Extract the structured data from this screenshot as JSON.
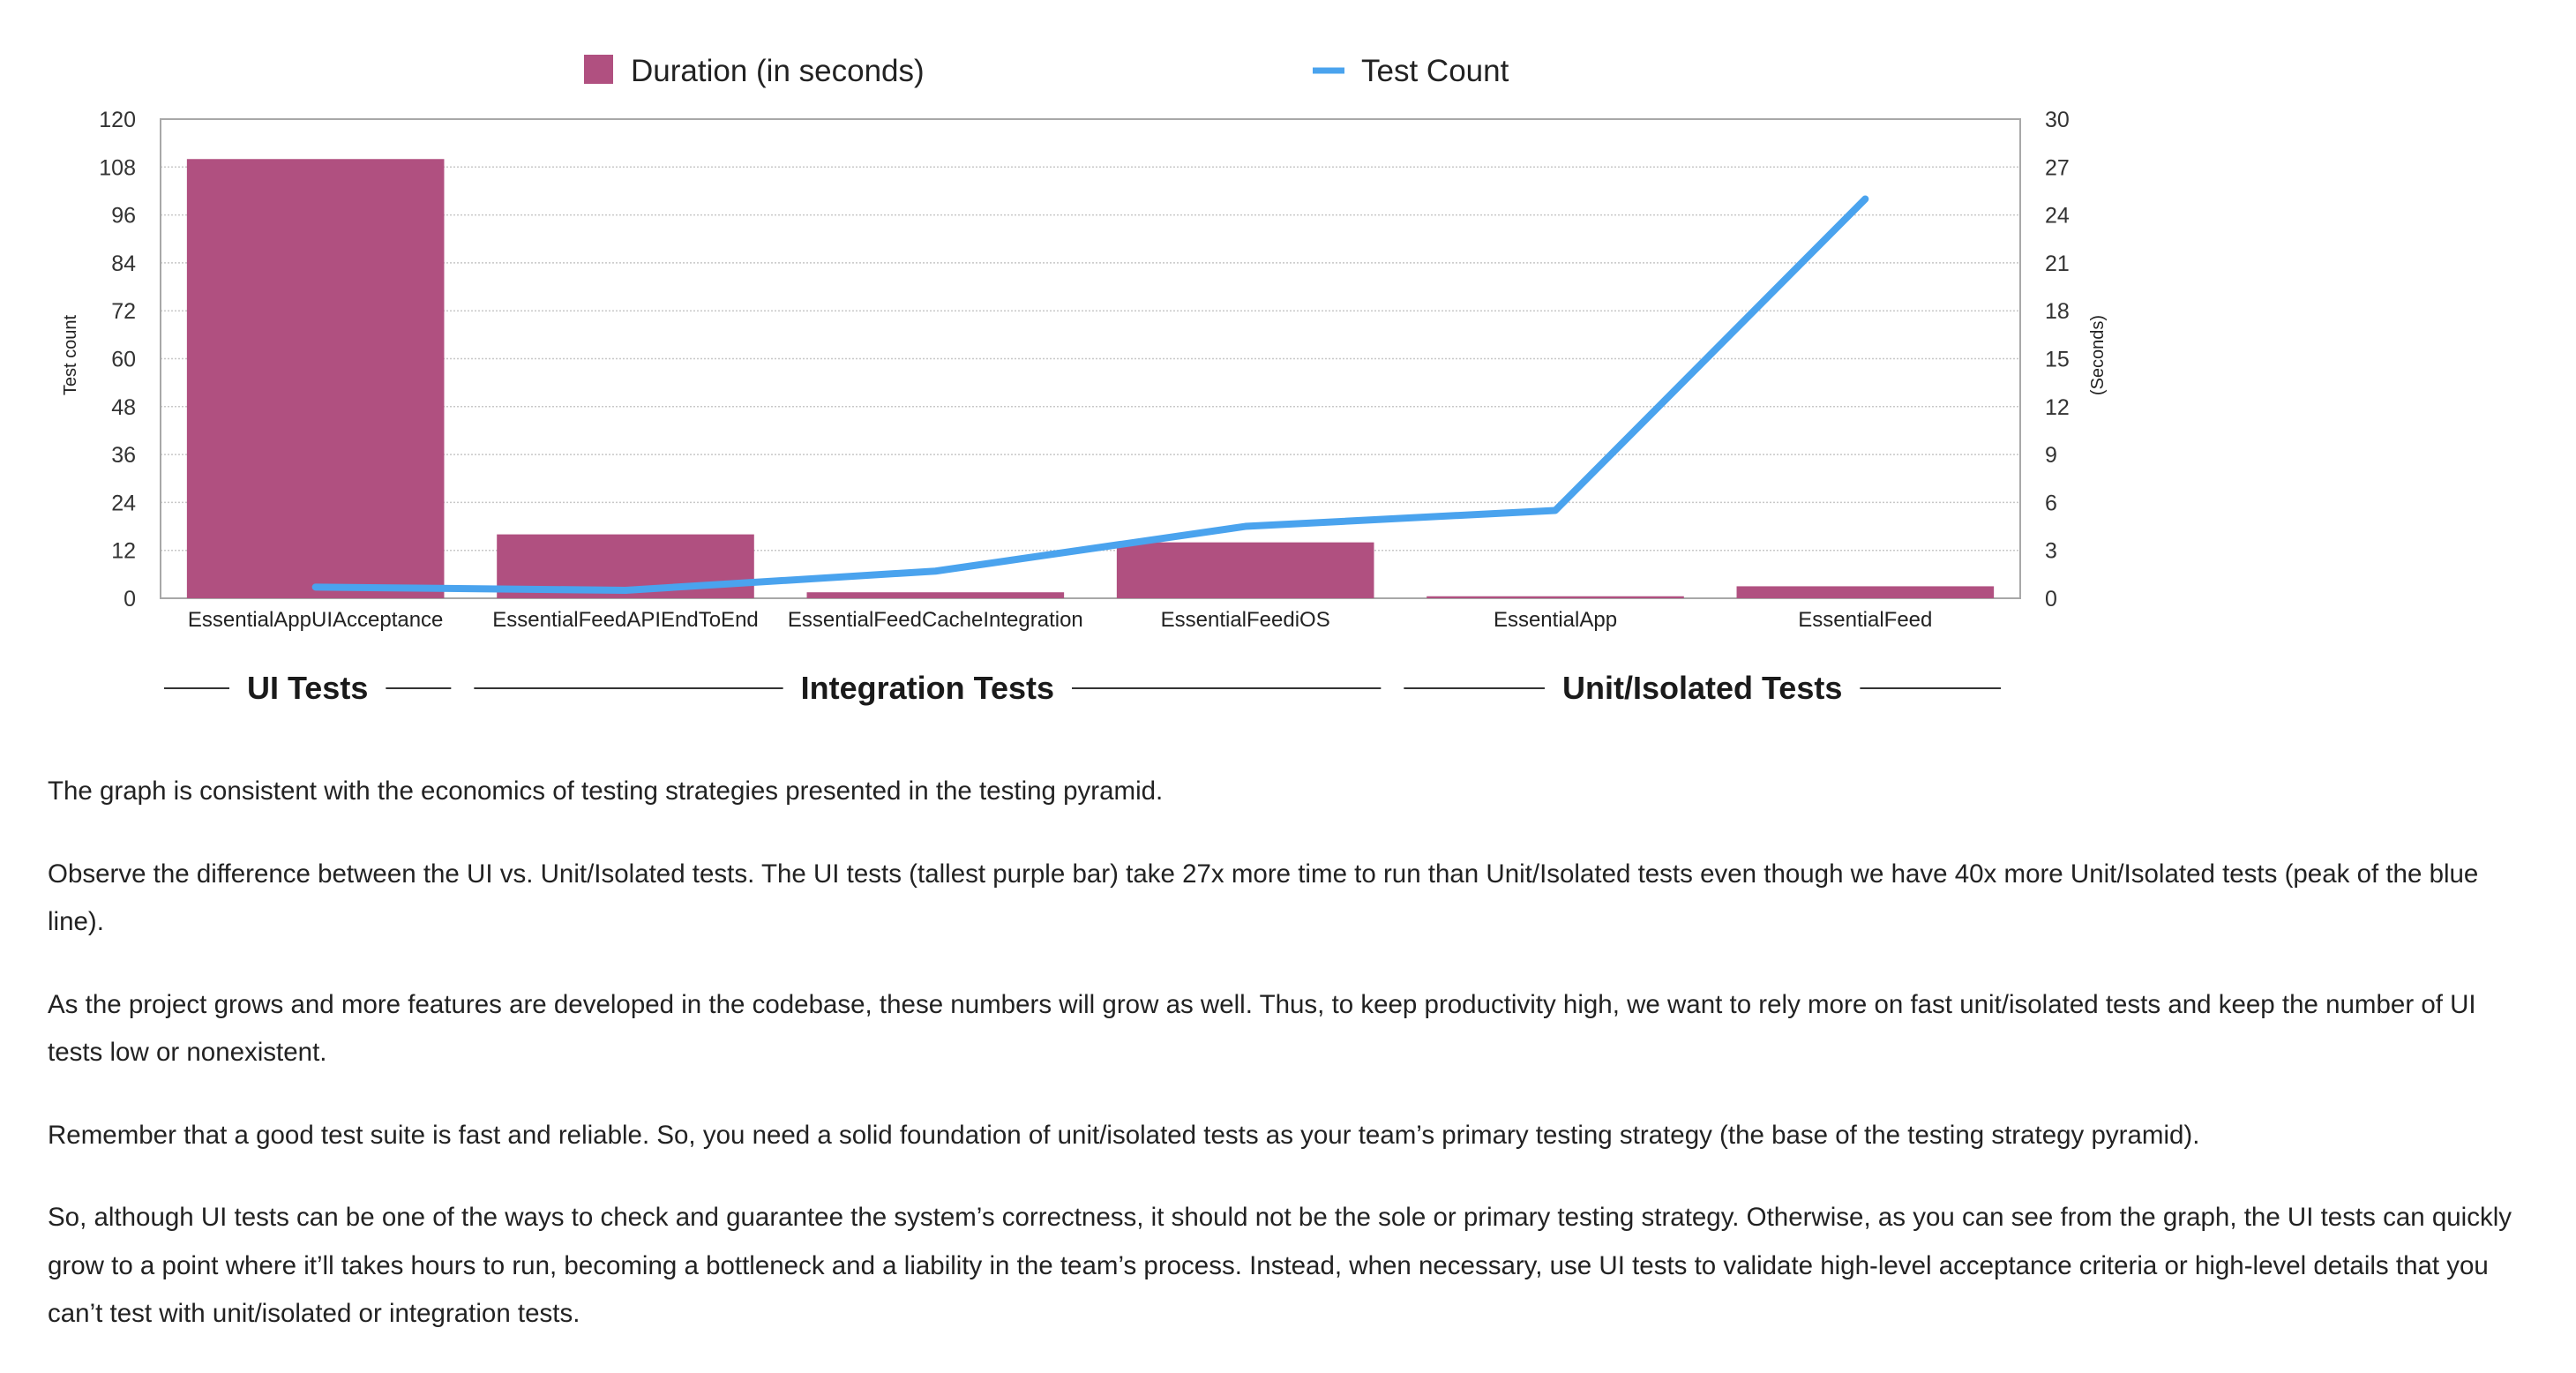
{
  "chart_data": {
    "type": "bar",
    "categories": [
      "EssentialAppUIAcceptance",
      "EssentialFeedAPIEndToEnd",
      "EssentialFeedCacheIntegration",
      "EssentialFeediOS",
      "EssentialApp",
      "EssentialFeed"
    ],
    "series": [
      {
        "name": "Duration (in seconds)",
        "type": "bar",
        "axis": "left",
        "color": "#b05080",
        "values": [
          110,
          16,
          1.5,
          14,
          0.5,
          3
        ]
      },
      {
        "name": "Test Count",
        "type": "line",
        "axis": "right",
        "color": "#4aa3ee",
        "values": [
          0.7,
          0.5,
          1.7,
          4.5,
          5.5,
          25
        ]
      }
    ],
    "ylabel": "Test count",
    "ylim": [
      0,
      120
    ],
    "yticks": [
      "0",
      "12",
      "24",
      "36",
      "48",
      "60",
      "72",
      "84",
      "96",
      "108",
      "120"
    ],
    "y2label": "(Seconds)",
    "y2lim": [
      0,
      30
    ],
    "y2ticks": [
      "0",
      "3",
      "6",
      "9",
      "12",
      "15",
      "18",
      "21",
      "24",
      "27",
      "30"
    ],
    "groups": [
      {
        "label": "UI Tests",
        "span": [
          0,
          0
        ]
      },
      {
        "label": "Integration Tests",
        "span": [
          1,
          3
        ]
      },
      {
        "label": "Unit/Isolated Tests",
        "span": [
          4,
          5
        ]
      }
    ],
    "legend_placement": "top",
    "grid": true
  },
  "article": {
    "paragraphs": [
      "The graph is consistent with the economics of testing strategies presented in the testing pyramid.",
      "Observe the difference between the UI vs. Unit/Isolated tests. The UI tests (tallest purple bar) take 27x more time to run than Unit/Isolated tests even though we have 40x more Unit/Isolated tests (peak of the blue line).",
      "As the project grows and more features are developed in the codebase, these numbers will grow as well. Thus, to keep productivity high, we want to rely more on fast unit/isolated tests and keep the number of UI tests low or nonexistent.",
      "Remember that a good test suite is fast and reliable. So, you need a solid foundation of unit/isolated tests as your team’s primary testing strategy (the base of the testing strategy pyramid).",
      "So, although UI tests can be one of the ways to check and guarantee the system’s correctness, it should not be the sole or primary testing strategy. Otherwise, as you can see from the graph, the UI tests can quickly grow to a point where it’ll takes hours to run, becoming a bottleneck and a liability in the team’s process. Instead, when necessary, use UI tests to validate high-level acceptance criteria or high-level details that you can’t test with unit/isolated or integration tests."
    ]
  }
}
